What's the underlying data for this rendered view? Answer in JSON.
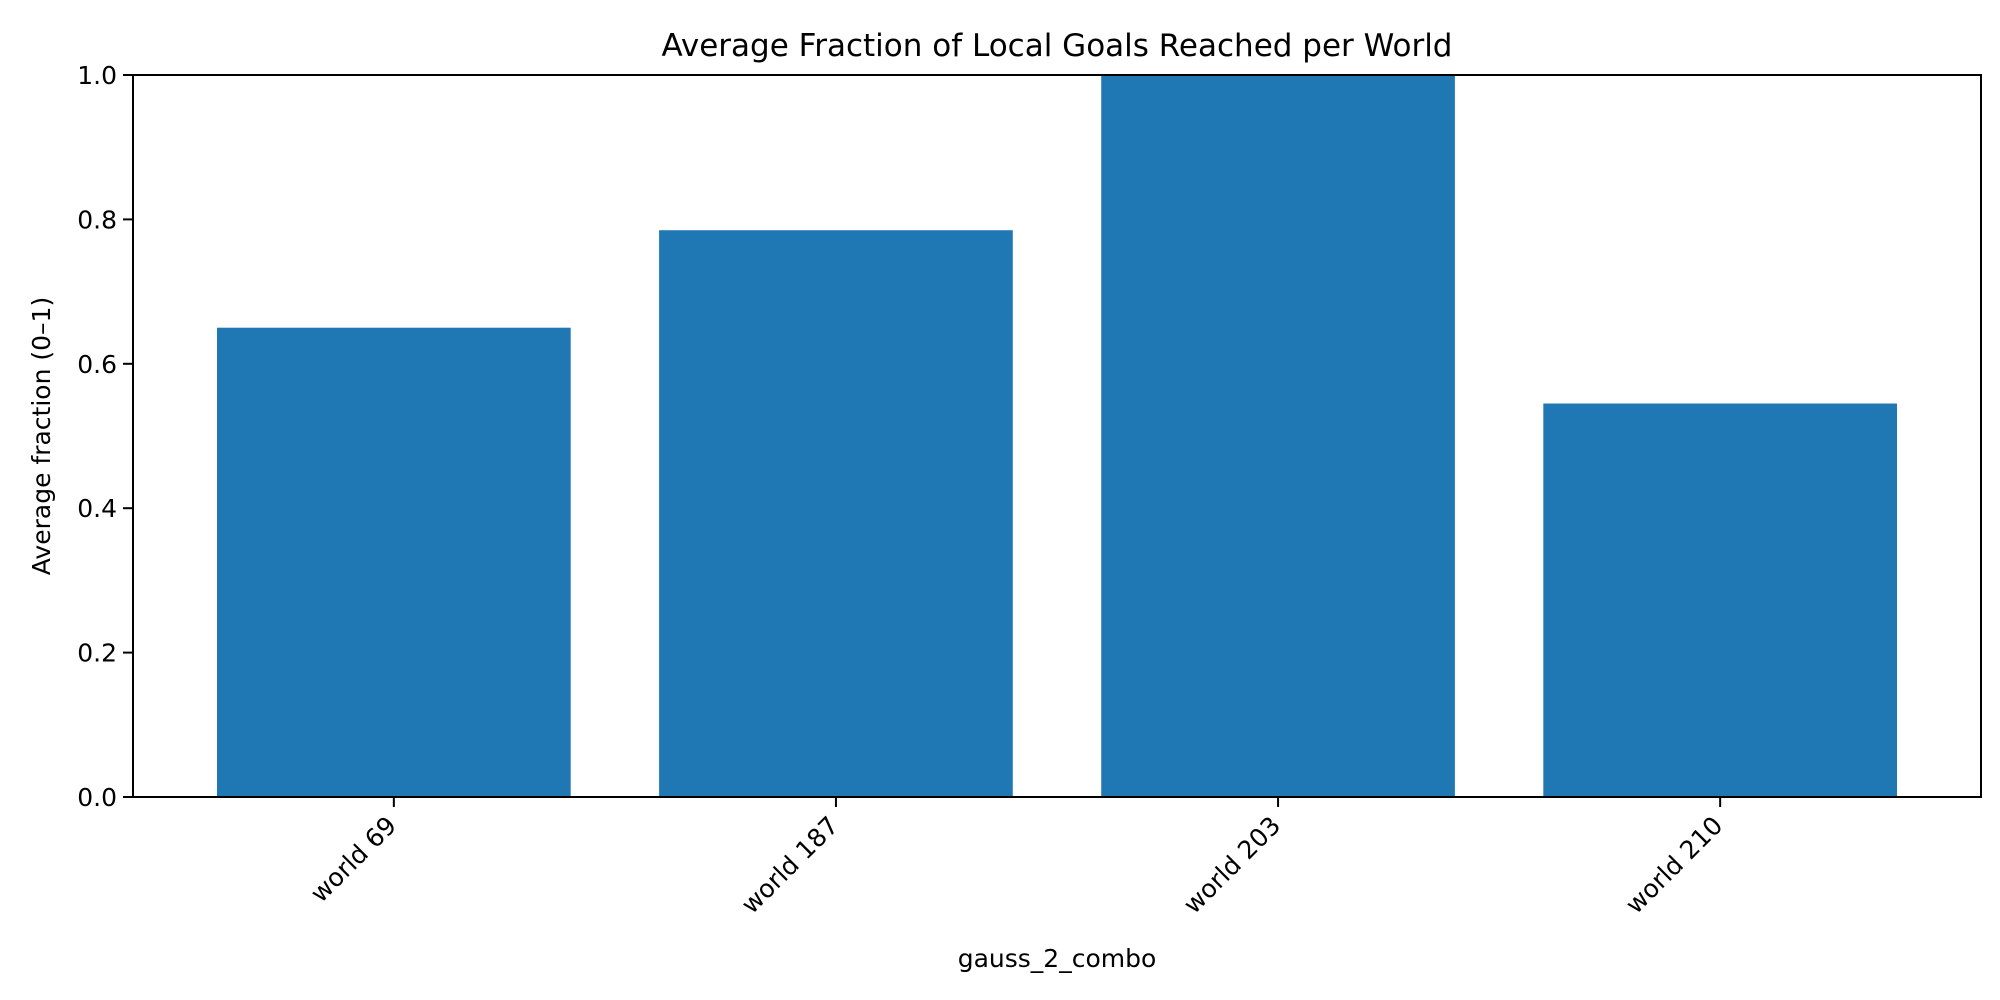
{
  "chart_data": {
    "type": "bar",
    "title": "Average Fraction of Local Goals Reached per World",
    "xlabel": "gauss_2_combo",
    "ylabel": "Average fraction (0–1)",
    "categories": [
      "world 69",
      "world 187",
      "world 203",
      "world 210"
    ],
    "values": [
      0.65,
      0.785,
      1.0,
      0.545
    ],
    "ylim": [
      0,
      1.0
    ],
    "yticks": [
      0.0,
      0.2,
      0.4,
      0.6,
      0.8,
      1.0
    ],
    "ytick_labels": [
      "0.0",
      "0.2",
      "0.4",
      "0.6",
      "0.8",
      "1.0"
    ],
    "bar_color": "#1f77b4",
    "grid": false,
    "legend": "none"
  }
}
